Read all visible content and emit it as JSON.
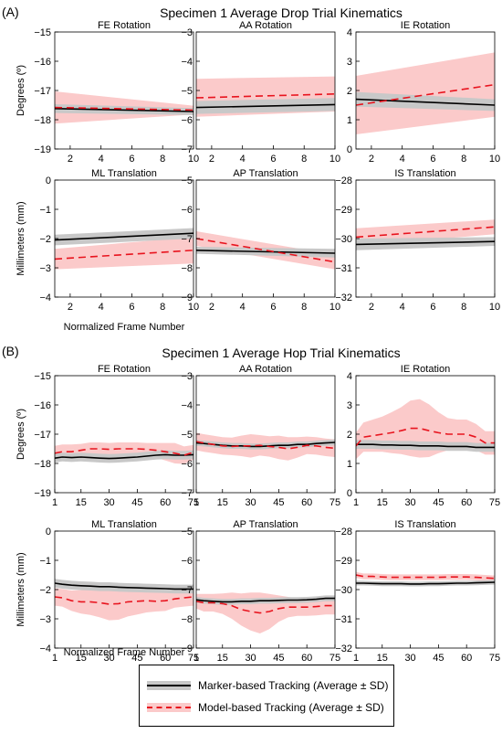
{
  "colors": {
    "marker_line": "#000000",
    "marker_band": "#c8c8c8",
    "model_line": "#e8141e",
    "model_band": "#fbcaca"
  },
  "legend": {
    "marker_label": "Marker-based Tracking (Average ± SD)",
    "model_label": "Model-based Tracking (Average ± SD)"
  },
  "chart_data": [
    {
      "type": "line",
      "panel_label": "(A)",
      "title": "Specimen 1 Average Drop Trial Kinematics",
      "x_axis_label": "Normalized Frame Number",
      "row_ylabels": [
        "Degrees (º)",
        "Millimeters (mm)"
      ],
      "xlim": [
        1,
        10
      ],
      "xticks": [
        2,
        4,
        6,
        8,
        10
      ],
      "subplots": [
        {
          "title": "FE Rotation",
          "ylim": [
            -19,
            -15
          ],
          "yticks": [
            -19,
            -18,
            -17,
            -16,
            -15
          ],
          "x": [
            1,
            10
          ],
          "marker": {
            "mean": [
              -17.62,
              -17.72
            ],
            "sd": [
              0.15,
              0.12
            ]
          },
          "model": {
            "mean": [
              -17.58,
              -17.67
            ],
            "sd": [
              0.55,
              0.15
            ]
          }
        },
        {
          "title": "AA Rotation",
          "ylim": [
            -7,
            -3
          ],
          "yticks": [
            -7,
            -6,
            -5,
            -4,
            -3
          ],
          "x": [
            1,
            10
          ],
          "marker": {
            "mean": [
              -5.58,
              -5.48
            ],
            "sd": [
              0.22,
              0.22
            ]
          },
          "model": {
            "mean": [
              -5.25,
              -5.12
            ],
            "sd": [
              0.65,
              0.6
            ]
          }
        },
        {
          "title": "IE Rotation",
          "ylim": [
            0,
            4
          ],
          "yticks": [
            0,
            1,
            2,
            3,
            4
          ],
          "x": [
            1,
            10
          ],
          "marker": {
            "mean": [
              1.7,
              1.5
            ],
            "sd": [
              0.25,
              0.2
            ]
          },
          "model": {
            "mean": [
              1.5,
              2.2
            ],
            "sd": [
              1.0,
              1.1
            ]
          }
        },
        {
          "title": "ML Translation",
          "ylim": [
            -4,
            0
          ],
          "yticks": [
            -4,
            -3,
            -2,
            -1,
            0
          ],
          "x": [
            1,
            10
          ],
          "marker": {
            "mean": [
              -2.05,
              -1.82
            ],
            "sd": [
              0.18,
              0.18
            ]
          },
          "model": {
            "mean": [
              -2.7,
              -2.4
            ],
            "sd": [
              0.35,
              0.45
            ]
          }
        },
        {
          "title": "AP Translation",
          "ylim": [
            -9,
            -5
          ],
          "yticks": [
            -9,
            -8,
            -7,
            -6,
            -5
          ],
          "x": [
            1,
            10
          ],
          "marker": {
            "mean": [
              -7.4,
              -7.5
            ],
            "sd": [
              0.12,
              0.15
            ]
          },
          "model": {
            "mean": [
              -7.0,
              -7.8
            ],
            "sd": [
              0.25,
              0.25
            ]
          }
        },
        {
          "title": "IS Translation",
          "ylim": [
            -32,
            -28
          ],
          "yticks": [
            -32,
            -31,
            -30,
            -29,
            -28
          ],
          "x": [
            1,
            10
          ],
          "marker": {
            "mean": [
              -30.2,
              -30.1
            ],
            "sd": [
              0.2,
              0.15
            ]
          },
          "model": {
            "mean": [
              -29.95,
              -29.6
            ],
            "sd": [
              0.3,
              0.25
            ]
          }
        }
      ]
    },
    {
      "type": "line",
      "panel_label": "(B)",
      "title": "Specimen 1 Average Hop Trial Kinematics",
      "x_axis_label": "Normalized Frame Number",
      "row_ylabels": [
        "Degrees (º)",
        "Millimeters (mm)"
      ],
      "xlim": [
        1,
        75
      ],
      "xticks": [
        1,
        15,
        30,
        45,
        60,
        75
      ],
      "subplots": [
        {
          "title": "FE Rotation",
          "ylim": [
            -19,
            -15
          ],
          "yticks": [
            -19,
            -18,
            -17,
            -16,
            -15
          ],
          "x": [
            1,
            5,
            10,
            15,
            20,
            25,
            30,
            35,
            40,
            45,
            50,
            55,
            60,
            65,
            70,
            75
          ],
          "marker": {
            "mean": [
              -17.82,
              -17.78,
              -17.8,
              -17.78,
              -17.8,
              -17.82,
              -17.83,
              -17.82,
              -17.8,
              -17.78,
              -17.75,
              -17.72,
              -17.7,
              -17.72,
              -17.72,
              -17.7
            ],
            "sd": [
              0.15,
              0.15,
              0.15,
              0.15,
              0.15,
              0.15,
              0.15,
              0.15,
              0.15,
              0.15,
              0.15,
              0.15,
              0.15,
              0.15,
              0.15,
              0.15
            ]
          },
          "model": {
            "mean": [
              -17.65,
              -17.6,
              -17.6,
              -17.55,
              -17.5,
              -17.5,
              -17.52,
              -17.5,
              -17.5,
              -17.5,
              -17.52,
              -17.55,
              -17.6,
              -17.65,
              -17.72,
              -17.62
            ],
            "sd": [
              0.25,
              0.25,
              0.25,
              0.22,
              0.22,
              0.22,
              0.22,
              0.22,
              0.22,
              0.22,
              0.22,
              0.25,
              0.3,
              0.35,
              0.3,
              0.25
            ]
          }
        },
        {
          "title": "AA Rotation",
          "ylim": [
            -7,
            -3
          ],
          "yticks": [
            -7,
            -6,
            -5,
            -4,
            -3
          ],
          "x": [
            1,
            5,
            10,
            15,
            20,
            25,
            30,
            35,
            40,
            45,
            50,
            55,
            60,
            65,
            70,
            75
          ],
          "marker": {
            "mean": [
              -5.3,
              -5.32,
              -5.35,
              -5.38,
              -5.4,
              -5.4,
              -5.42,
              -5.42,
              -5.4,
              -5.38,
              -5.38,
              -5.35,
              -5.35,
              -5.32,
              -5.3,
              -5.28
            ],
            "sd": [
              0.1,
              0.1,
              0.1,
              0.1,
              0.1,
              0.1,
              0.1,
              0.1,
              0.1,
              0.1,
              0.1,
              0.1,
              0.1,
              0.1,
              0.1,
              0.1
            ]
          },
          "model": {
            "mean": [
              -5.25,
              -5.3,
              -5.35,
              -5.4,
              -5.42,
              -5.4,
              -5.4,
              -5.38,
              -5.42,
              -5.45,
              -5.5,
              -5.45,
              -5.38,
              -5.4,
              -5.45,
              -5.48
            ],
            "sd": [
              0.3,
              0.3,
              0.3,
              0.3,
              0.3,
              0.35,
              0.4,
              0.35,
              0.35,
              0.4,
              0.4,
              0.35,
              0.3,
              0.3,
              0.3,
              0.3
            ]
          }
        },
        {
          "title": "IE Rotation",
          "ylim": [
            0,
            4
          ],
          "yticks": [
            0,
            1,
            2,
            3,
            4
          ],
          "x": [
            1,
            5,
            10,
            15,
            20,
            25,
            30,
            35,
            40,
            45,
            50,
            55,
            60,
            65,
            70,
            75
          ],
          "marker": {
            "mean": [
              1.65,
              1.65,
              1.65,
              1.63,
              1.63,
              1.62,
              1.62,
              1.6,
              1.6,
              1.6,
              1.58,
              1.58,
              1.58,
              1.55,
              1.55,
              1.55
            ],
            "sd": [
              0.15,
              0.15,
              0.15,
              0.15,
              0.15,
              0.15,
              0.15,
              0.15,
              0.15,
              0.15,
              0.15,
              0.15,
              0.15,
              0.15,
              0.15,
              0.15
            ]
          },
          "model": {
            "mean": [
              1.6,
              1.9,
              1.95,
              2.0,
              2.05,
              2.12,
              2.2,
              2.2,
              2.12,
              2.05,
              2.0,
              2.0,
              2.0,
              1.9,
              1.7,
              1.7
            ],
            "sd": [
              0.45,
              0.5,
              0.55,
              0.6,
              0.7,
              0.8,
              0.95,
              1.0,
              0.9,
              0.7,
              0.55,
              0.5,
              0.5,
              0.45,
              0.4,
              0.4
            ]
          }
        },
        {
          "title": "ML Translation",
          "ylim": [
            -4,
            0
          ],
          "yticks": [
            -4,
            -3,
            -2,
            -1,
            0
          ],
          "x": [
            1,
            5,
            10,
            15,
            20,
            25,
            30,
            35,
            40,
            45,
            50,
            55,
            60,
            65,
            70,
            75
          ],
          "marker": {
            "mean": [
              -1.78,
              -1.82,
              -1.85,
              -1.87,
              -1.88,
              -1.9,
              -1.9,
              -1.92,
              -1.93,
              -1.94,
              -1.95,
              -1.96,
              -1.97,
              -1.98,
              -1.98,
              -1.98
            ],
            "sd": [
              0.15,
              0.15,
              0.15,
              0.15,
              0.15,
              0.15,
              0.15,
              0.15,
              0.15,
              0.15,
              0.15,
              0.15,
              0.15,
              0.15,
              0.15,
              0.15
            ]
          },
          "model": {
            "mean": [
              -2.25,
              -2.28,
              -2.38,
              -2.42,
              -2.42,
              -2.45,
              -2.5,
              -2.48,
              -2.42,
              -2.4,
              -2.38,
              -2.4,
              -2.38,
              -2.32,
              -2.28,
              -2.25
            ],
            "sd": [
              0.3,
              0.3,
              0.35,
              0.4,
              0.45,
              0.5,
              0.55,
              0.55,
              0.5,
              0.45,
              0.4,
              0.35,
              0.35,
              0.3,
              0.3,
              0.3
            ]
          }
        },
        {
          "title": "AP Translation",
          "ylim": [
            -9,
            -5
          ],
          "yticks": [
            -9,
            -8,
            -7,
            -6,
            -5
          ],
          "x": [
            1,
            5,
            10,
            15,
            20,
            25,
            30,
            35,
            40,
            45,
            50,
            55,
            60,
            65,
            70,
            75
          ],
          "marker": {
            "mean": [
              -7.35,
              -7.38,
              -7.4,
              -7.42,
              -7.42,
              -7.4,
              -7.4,
              -7.38,
              -7.38,
              -7.37,
              -7.36,
              -7.36,
              -7.35,
              -7.33,
              -7.3,
              -7.3
            ],
            "sd": [
              0.1,
              0.1,
              0.1,
              0.1,
              0.1,
              0.1,
              0.1,
              0.1,
              0.1,
              0.1,
              0.1,
              0.1,
              0.1,
              0.1,
              0.1,
              0.1
            ]
          },
          "model": {
            "mean": [
              -7.4,
              -7.45,
              -7.45,
              -7.48,
              -7.55,
              -7.68,
              -7.75,
              -7.8,
              -7.75,
              -7.65,
              -7.6,
              -7.6,
              -7.6,
              -7.58,
              -7.55,
              -7.55
            ],
            "sd": [
              0.25,
              0.3,
              0.3,
              0.35,
              0.45,
              0.55,
              0.65,
              0.7,
              0.6,
              0.45,
              0.35,
              0.3,
              0.3,
              0.3,
              0.3,
              0.3
            ]
          }
        },
        {
          "title": "IS Translation",
          "ylim": [
            -32,
            -28
          ],
          "yticks": [
            -32,
            -31,
            -30,
            -29,
            -28
          ],
          "x": [
            1,
            5,
            10,
            15,
            20,
            25,
            30,
            35,
            40,
            45,
            50,
            55,
            60,
            65,
            70,
            75
          ],
          "marker": {
            "mean": [
              -29.78,
              -29.78,
              -29.79,
              -29.8,
              -29.8,
              -29.8,
              -29.81,
              -29.81,
              -29.8,
              -29.8,
              -29.79,
              -29.78,
              -29.78,
              -29.77,
              -29.76,
              -29.75
            ],
            "sd": [
              0.08,
              0.08,
              0.08,
              0.08,
              0.08,
              0.08,
              0.08,
              0.08,
              0.08,
              0.08,
              0.08,
              0.08,
              0.08,
              0.08,
              0.08,
              0.08
            ]
          },
          "model": {
            "mean": [
              -29.5,
              -29.55,
              -29.55,
              -29.57,
              -29.58,
              -29.58,
              -29.58,
              -29.58,
              -29.58,
              -29.58,
              -29.57,
              -29.57,
              -29.57,
              -29.58,
              -29.6,
              -29.62
            ],
            "sd": [
              0.1,
              0.1,
              0.1,
              0.1,
              0.1,
              0.1,
              0.1,
              0.1,
              0.1,
              0.1,
              0.1,
              0.1,
              0.1,
              0.1,
              0.1,
              0.1
            ]
          }
        }
      ]
    }
  ]
}
